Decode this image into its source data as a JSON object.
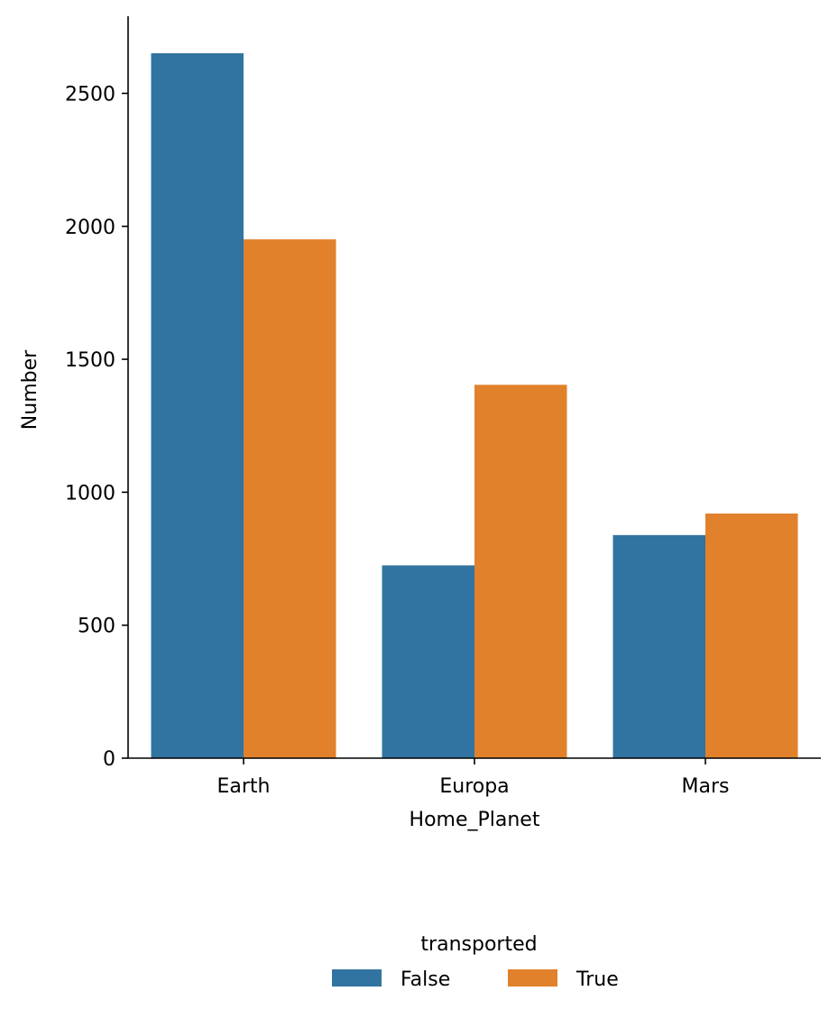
{
  "chart_data": {
    "type": "bar",
    "categories": [
      "Earth",
      "Europa",
      "Mars"
    ],
    "series": [
      {
        "name": "False",
        "values": [
          2651,
          725,
          839
        ],
        "color": "#3274a1"
      },
      {
        "name": "True",
        "values": [
          1951,
          1404,
          920
        ],
        "color": "#e1812c"
      }
    ],
    "xlabel": "Home_Planet",
    "ylabel": "Number",
    "ylim": [
      0,
      2790
    ],
    "yticks": [
      0,
      500,
      1000,
      1500,
      2000,
      2500
    ],
    "legend": {
      "title": "transported",
      "position": "bottom-center"
    },
    "grid": false
  }
}
